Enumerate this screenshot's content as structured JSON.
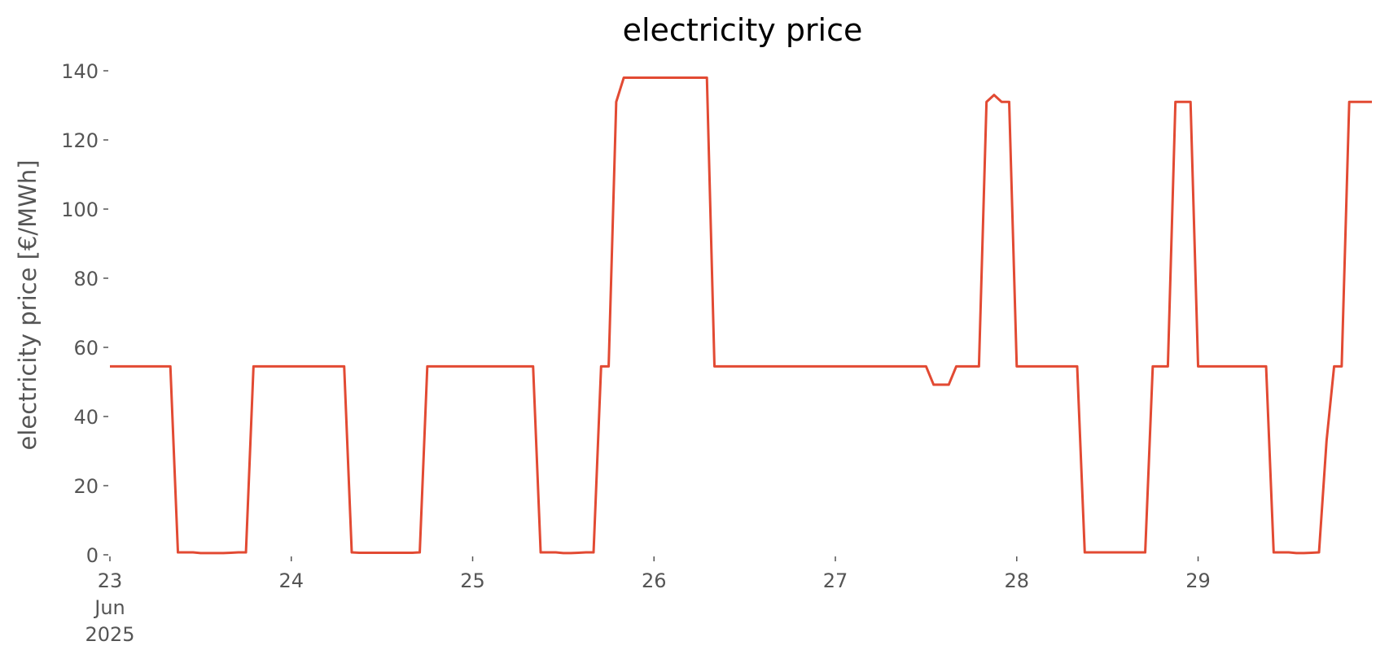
{
  "chart_data": {
    "type": "line",
    "title": "electricity price",
    "ylabel": "electricity price [€/MWh]",
    "x": [
      0,
      1,
      2,
      3,
      4,
      5,
      6,
      7,
      8,
      9,
      10,
      11,
      12,
      13,
      14,
      15,
      16,
      17,
      18,
      19,
      20,
      21,
      22,
      23,
      24,
      25,
      26,
      27,
      28,
      29,
      30,
      31,
      32,
      33,
      34,
      35,
      36,
      37,
      38,
      39,
      40,
      41,
      42,
      43,
      44,
      45,
      46,
      47,
      48,
      49,
      50,
      51,
      52,
      53,
      54,
      55,
      56,
      57,
      58,
      59,
      60,
      61,
      62,
      63,
      64,
      65,
      66,
      67,
      68,
      69,
      70,
      71,
      72,
      73,
      74,
      75,
      76,
      77,
      78,
      79,
      80,
      81,
      82,
      83,
      84,
      85,
      86,
      87,
      88,
      89,
      90,
      91,
      92,
      93,
      94,
      95,
      96,
      97,
      98,
      99,
      100,
      101,
      102,
      103,
      104,
      105,
      106,
      107,
      108,
      109,
      110,
      111,
      112,
      113,
      114,
      115,
      116,
      117,
      118,
      119,
      120,
      121,
      122,
      123,
      124,
      125,
      126,
      127,
      128,
      129,
      130,
      131,
      132,
      133,
      134,
      135,
      136,
      137,
      138,
      139,
      140,
      141,
      142,
      143,
      144,
      145,
      146,
      147,
      148,
      149,
      150,
      151,
      152,
      153,
      154,
      155,
      156,
      157,
      158,
      159,
      160,
      161,
      162,
      163,
      164,
      165,
      166,
      167
    ],
    "series": [
      {
        "name": "electricity price",
        "color": "#e24a33",
        "values": [
          54.5,
          54.5,
          54.5,
          54.5,
          54.5,
          54.5,
          54.5,
          54.5,
          54.5,
          0.7,
          0.7,
          0.7,
          0.5,
          0.5,
          0.5,
          0.5,
          0.6,
          0.7,
          0.7,
          54.5,
          54.5,
          54.5,
          54.5,
          54.5,
          54.5,
          54.5,
          54.5,
          54.5,
          54.5,
          54.5,
          54.5,
          54.5,
          0.7,
          0.6,
          0.6,
          0.6,
          0.6,
          0.6,
          0.6,
          0.6,
          0.6,
          0.7,
          54.5,
          54.5,
          54.5,
          54.5,
          54.5,
          54.5,
          54.5,
          54.5,
          54.5,
          54.5,
          54.5,
          54.5,
          54.5,
          54.5,
          54.5,
          0.7,
          0.7,
          0.7,
          0.5,
          0.5,
          0.6,
          0.7,
          0.7,
          54.5,
          54.5,
          131,
          138,
          138,
          138,
          138,
          138,
          138,
          138,
          138,
          138,
          138,
          138,
          138,
          54.5,
          54.5,
          54.5,
          54.5,
          54.5,
          54.5,
          54.5,
          54.5,
          54.5,
          54.5,
          54.5,
          54.5,
          54.5,
          54.5,
          54.5,
          54.5,
          54.5,
          54.5,
          54.5,
          54.5,
          54.5,
          54.5,
          54.5,
          54.5,
          54.5,
          54.5,
          54.5,
          54.5,
          54.5,
          49.2,
          49.2,
          49.2,
          54.5,
          54.5,
          54.5,
          54.5,
          131,
          133,
          131,
          131,
          54.5,
          54.5,
          54.5,
          54.5,
          54.5,
          54.5,
          54.5,
          54.5,
          54.5,
          0.7,
          0.7,
          0.7,
          0.7,
          0.7,
          0.7,
          0.7,
          0.7,
          0.7,
          54.5,
          54.5,
          54.5,
          131,
          131,
          131,
          54.5,
          54.5,
          54.5,
          54.5,
          54.5,
          54.5,
          54.5,
          54.5,
          54.5,
          54.5,
          0.7,
          0.7,
          0.7,
          0.5,
          0.5,
          0.6,
          0.7,
          33,
          54.5,
          54.5,
          131,
          131,
          131,
          131
        ]
      }
    ],
    "xlim": [
      0,
      167
    ],
    "xticks": [
      {
        "value": 0,
        "label": "23\nJun\n2025"
      },
      {
        "value": 24,
        "label": "24"
      },
      {
        "value": 48,
        "label": "25"
      },
      {
        "value": 72,
        "label": "26"
      },
      {
        "value": 96,
        "label": "27"
      },
      {
        "value": 120,
        "label": "28"
      },
      {
        "value": 144,
        "label": "29"
      }
    ],
    "ylim": [
      0,
      140
    ],
    "yticks": [
      0,
      20,
      40,
      60,
      80,
      100,
      120,
      140
    ],
    "grid": false
  }
}
